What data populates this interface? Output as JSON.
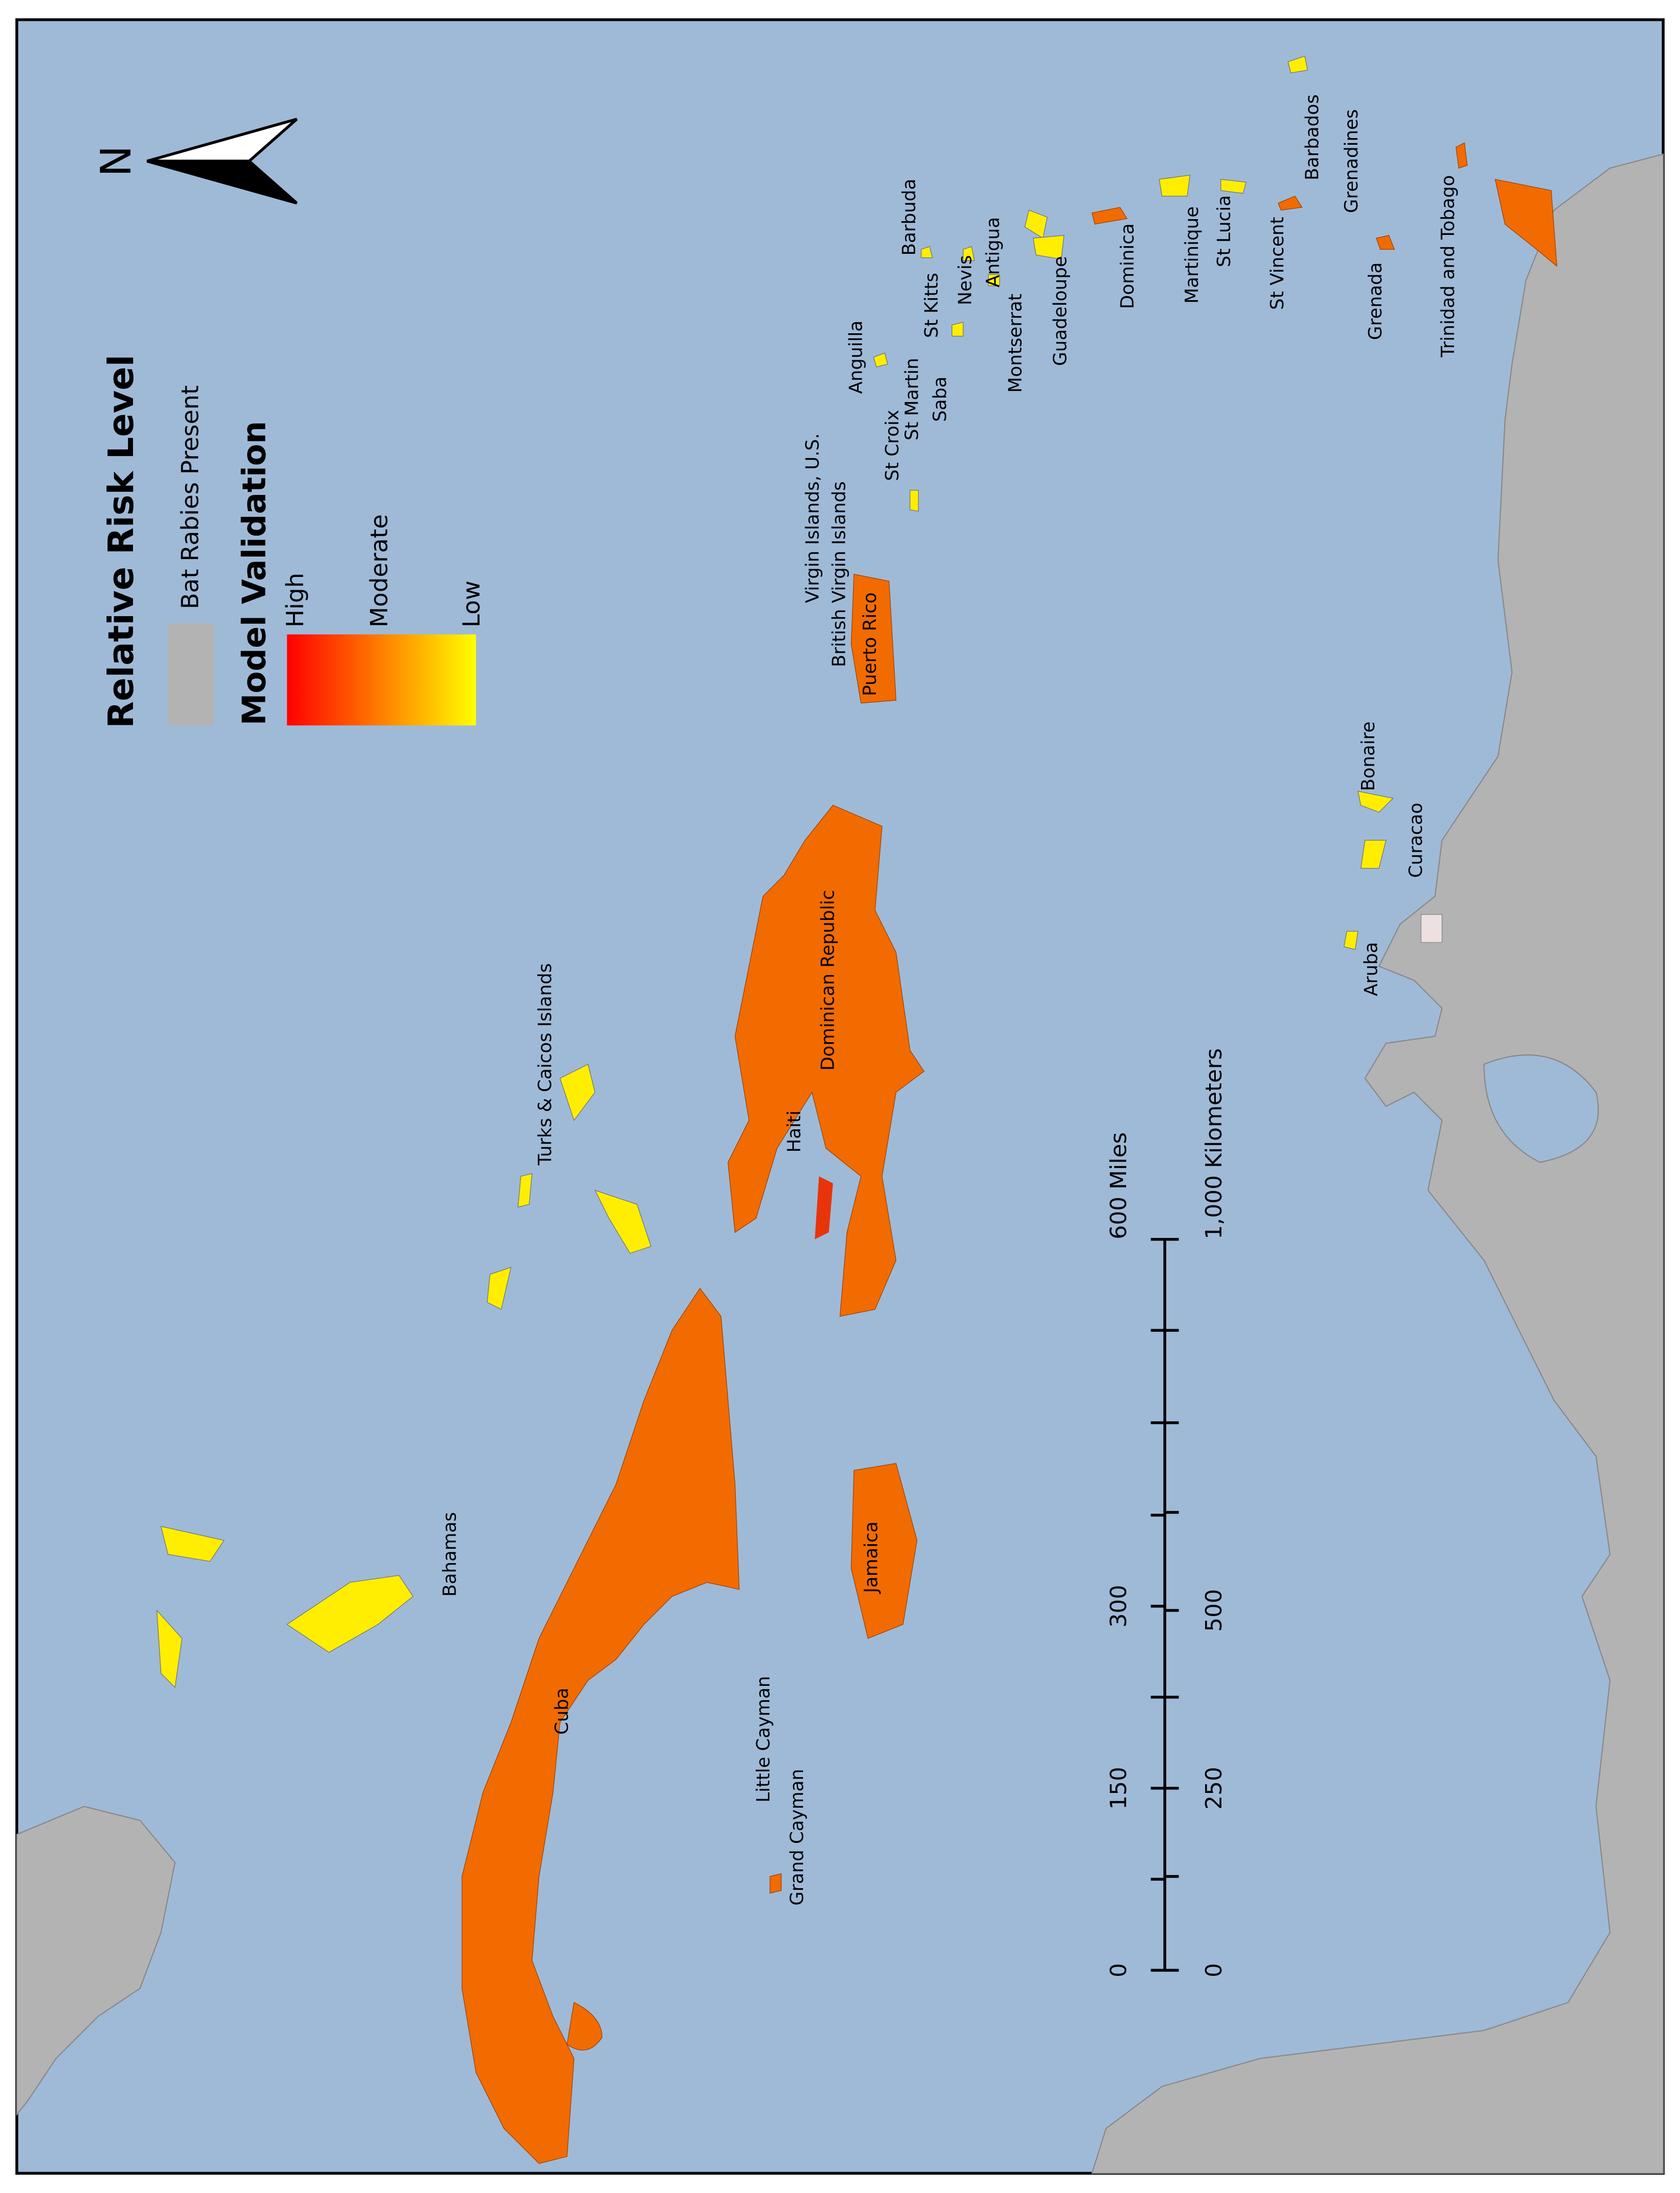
{
  "north_label": "N",
  "legend": {
    "title": "Relative Risk Level",
    "items": [
      "Bat Rabies Present"
    ],
    "gradient_title": "Model Validation",
    "gradient_labels": [
      "High",
      "Moderate",
      "Low"
    ]
  },
  "scale_bar": {
    "miles": [
      "0",
      "150",
      "300",
      "600 Miles"
    ],
    "kilometers": [
      "0",
      "250",
      "500",
      "1,000 Kilometers"
    ]
  },
  "places": [
    "Bahamas",
    "Turks & Caicos Islands",
    "Haiti",
    "Dominican Republic",
    "Cuba",
    "Jamaica",
    "Little Cayman",
    "Grand Cayman",
    "Puerto Rico",
    "British Virgin Islands",
    "Virgin Islands, U.S.",
    "Anguilla",
    "St Croix",
    "St Martin",
    "Saba",
    "St Kitts",
    "Nevis",
    "Barbuda",
    "Antigua",
    "Montserrat",
    "Guadeloupe",
    "Dominica",
    "Martinique",
    "St Lucia",
    "St Vincent",
    "Barbados",
    "Grenadines",
    "Grenada",
    "Trinidad and Tobago",
    "Bonaire",
    "Curacao",
    "Aruba"
  ]
}
